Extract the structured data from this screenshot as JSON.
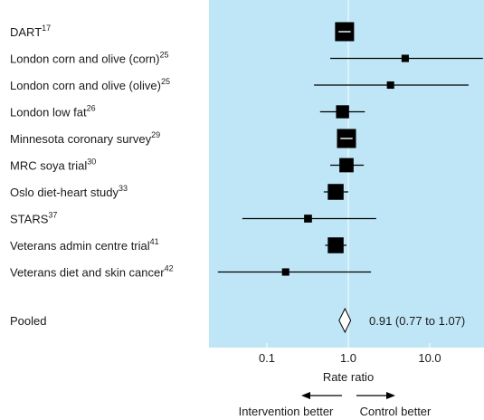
{
  "chart_data": {
    "type": "forest",
    "xscale": "log",
    "xlim": [
      0.02,
      50
    ],
    "xticks": [
      {
        "value": 0.1,
        "label": "0.1"
      },
      {
        "value": 1.0,
        "label": "1.0"
      },
      {
        "value": 10.0,
        "label": "10.0"
      }
    ],
    "xlabel": "Rate ratio",
    "reference_value": 1.0,
    "direction_left": "Intervention better",
    "direction_right": "Control better",
    "studies": [
      {
        "name": "DART",
        "ref": "17",
        "estimate": 0.9,
        "lower": 0.9,
        "upper": 0.9,
        "weight": 1.0
      },
      {
        "name": "London corn and olive (corn)",
        "ref": "25",
        "estimate": 5.0,
        "lower": 0.6,
        "upper": 45,
        "weight": 0.08
      },
      {
        "name": "London corn and olive (olive)",
        "ref": "25",
        "estimate": 3.3,
        "lower": 0.38,
        "upper": 30,
        "weight": 0.08
      },
      {
        "name": "London low fat",
        "ref": "26",
        "estimate": 0.85,
        "lower": 0.45,
        "upper": 1.6,
        "weight": 0.4
      },
      {
        "name": "Minnesota coronary survey",
        "ref": "29",
        "estimate": 0.95,
        "lower": 0.95,
        "upper": 0.95,
        "weight": 1.0
      },
      {
        "name": "MRC soya trial",
        "ref": "30",
        "estimate": 0.95,
        "lower": 0.6,
        "upper": 1.55,
        "weight": 0.5
      },
      {
        "name": "Oslo diet-heart study",
        "ref": "33",
        "estimate": 0.7,
        "lower": 0.5,
        "upper": 1.0,
        "weight": 0.65
      },
      {
        "name": "STARS",
        "ref": "37",
        "estimate": 0.32,
        "lower": 0.05,
        "upper": 2.2,
        "weight": 0.1
      },
      {
        "name": "Veterans admin centre trial",
        "ref": "41",
        "estimate": 0.7,
        "lower": 0.52,
        "upper": 0.95,
        "weight": 0.65
      },
      {
        "name": "Veterans diet and skin cancer",
        "ref": "42",
        "estimate": 0.17,
        "lower": 0.025,
        "upper": 1.9,
        "weight": 0.08
      }
    ],
    "pooled": {
      "name": "Pooled",
      "estimate": 0.91,
      "lower": 0.77,
      "upper": 1.07,
      "label": "0.91 (0.77 to 1.07)"
    },
    "colors": {
      "panel": "#bfe6f6",
      "ink": "#000000",
      "reference_line": "#ffffff"
    }
  }
}
